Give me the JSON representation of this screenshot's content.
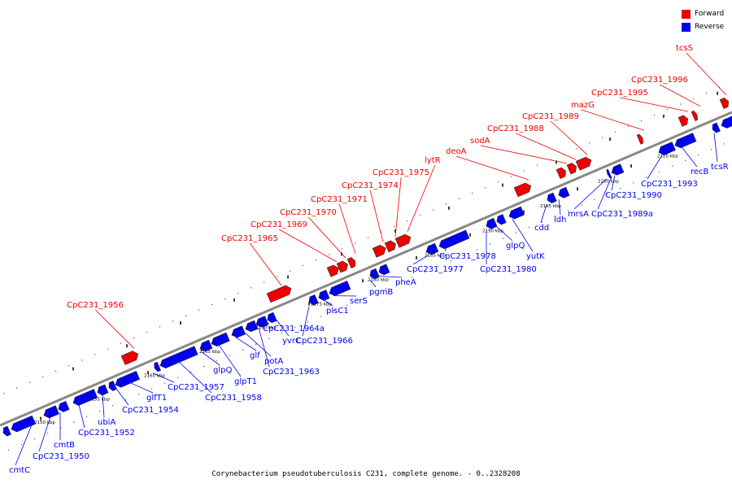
{
  "legend": {
    "forward_label": "Forward",
    "reverse_label": "Reverse",
    "forward_color": "#ee0000",
    "reverse_color": "#0000ee"
  },
  "caption": "Corynebacterium pseudotuberculosis C231, complete genome. - 0..2328208",
  "axis_ticks": [
    "2150 kbp",
    "2155 kbp",
    "2160 kbp",
    "2165 kbp",
    "2170 kbp",
    "2175 kbp",
    "2180 kbp",
    "2185 kbp",
    "2190 kbp",
    "2195 kbp",
    "2200 kbp",
    "2205 kbp"
  ],
  "forward_labels": [
    "CpC231_1956",
    "CpC231_1965",
    "CpC231_1969",
    "CpC231_1970",
    "CpC231_1971",
    "CpC231_1974",
    "CpC231_1975",
    "lytR",
    "deoA",
    "sodA",
    "CpC231_1988",
    "CpC231_1989",
    "mazG",
    "CpC231_1995",
    "CpC231_1996",
    "tcsS"
  ],
  "reverse_labels": [
    "cmtC",
    "CpC231_1950",
    "cmtB",
    "CpC231_1952",
    "ubiA",
    "CpC231_1954",
    "glfT1",
    "CpC231_1957",
    "CpC231_1958",
    "glpQ",
    "glpT1",
    "glf",
    "potA",
    "CpC231_1963",
    "CpC231_1964a",
    "yvrC",
    "CpC231_1966",
    "plsC1",
    "serS",
    "pgmB",
    "pheA",
    "CpC231_1977",
    "CpC231_1978",
    "CpC231_1980",
    "glpQ",
    "yutK",
    "cdd",
    "ldh",
    "mrsA",
    "CpC231_1989a",
    "CpC231_1990",
    "CpC231_1993",
    "recB",
    "tcsR"
  ]
}
